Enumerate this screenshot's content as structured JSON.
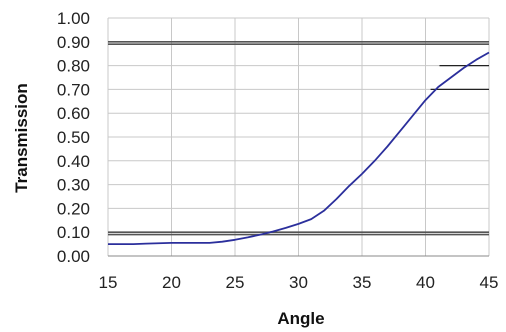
{
  "chart_data": {
    "type": "line",
    "title": "",
    "xlabel": "Angle",
    "ylabel": "Transmission",
    "xlim": [
      15,
      45
    ],
    "ylim": [
      0,
      1
    ],
    "x_ticks": [
      15,
      20,
      25,
      30,
      35,
      40,
      45
    ],
    "y_ticks": [
      0,
      0.1,
      0.2,
      0.3,
      0.4,
      0.5,
      0.6,
      0.7,
      0.8,
      0.9,
      1.0
    ],
    "x_tick_labels": [
      "15",
      "20",
      "25",
      "30",
      "35",
      "40",
      "45"
    ],
    "y_tick_labels": [
      "0.00",
      "0.10",
      "0.20",
      "0.30",
      "0.40",
      "0.50",
      "0.60",
      "0.70",
      "0.80",
      "0.90",
      "1.00"
    ],
    "grid": true,
    "series": [
      {
        "color": "#2b2f9c",
        "x": [
          15,
          17,
          18,
          20,
          22,
          23,
          24,
          25,
          26,
          27,
          28,
          29,
          30,
          31,
          32,
          33,
          34,
          35,
          36,
          37,
          38,
          39,
          40,
          41,
          42,
          43,
          44,
          45
        ],
        "y": [
          0.05,
          0.05,
          0.052,
          0.055,
          0.055,
          0.055,
          0.06,
          0.068,
          0.078,
          0.09,
          0.103,
          0.118,
          0.135,
          0.155,
          0.19,
          0.24,
          0.295,
          0.345,
          0.4,
          0.46,
          0.525,
          0.59,
          0.655,
          0.71,
          0.75,
          0.79,
          0.825,
          0.855
        ]
      }
    ],
    "reference_bands": [
      {
        "y": [
          0.89,
          0.9
        ],
        "color": "#555555"
      },
      {
        "y": [
          0.09,
          0.1
        ],
        "color": "#555555"
      }
    ],
    "reference_segments": [
      {
        "y": 0.8,
        "x": [
          41.1,
          45
        ],
        "color": "#222222"
      },
      {
        "y": 0.7,
        "x": [
          40.4,
          45
        ],
        "color": "#222222"
      }
    ],
    "colors": {
      "grid": "#c8c8c8",
      "axis": "#888888",
      "text": "#222222"
    }
  }
}
